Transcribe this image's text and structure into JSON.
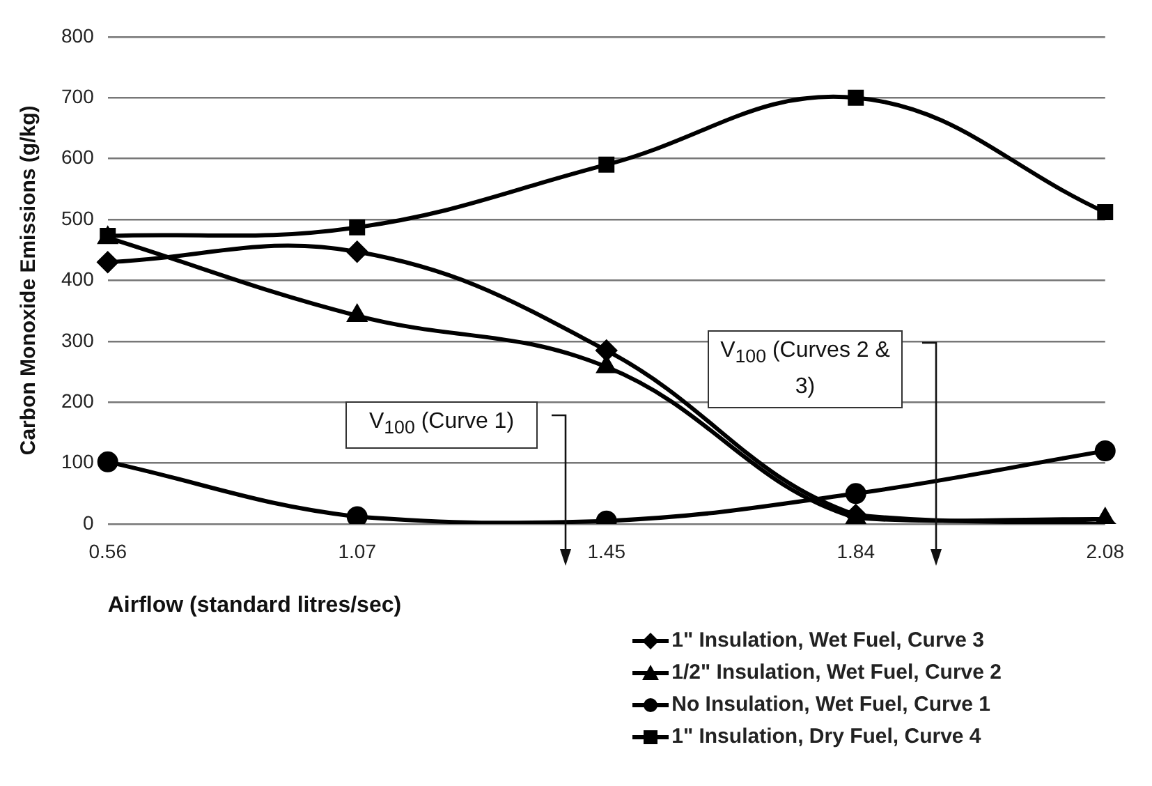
{
  "chart_data": {
    "type": "line",
    "xlabel": "Airflow (standard litres/sec)",
    "ylabel": "Carbon Monoxide Emissions (g/kg)",
    "categories": [
      "0.56",
      "1.07",
      "1.45",
      "1.84",
      "2.08"
    ],
    "series": [
      {
        "name": "1\" Insulation, Wet Fuel, Curve 3",
        "color": "#000000",
        "marker": "diamond",
        "values": [
          430,
          447,
          285,
          15,
          0
        ]
      },
      {
        "name": "1/2\" Insulation, Wet Fuel, Curve 2",
        "color": "#000000",
        "marker": "triangle",
        "values": [
          470,
          342,
          258,
          10,
          8
        ]
      },
      {
        "name": "No Insulation, Wet Fuel, Curve 1",
        "color": "#000000",
        "marker": "circle",
        "values": [
          102,
          12,
          5,
          50,
          120
        ]
      },
      {
        "name": "1\" Insulation, Dry Fuel, Curve 4",
        "color": "#000000",
        "marker": "square",
        "values": [
          473,
          487,
          590,
          700,
          512
        ]
      }
    ],
    "ylim": [
      0,
      800
    ],
    "yticks": [
      0,
      100,
      200,
      300,
      400,
      500,
      600,
      700,
      800
    ],
    "grid": "y",
    "legend": "bottom right",
    "line_style": "solid",
    "annotations": [
      "V$_{100}$ (Curve 1)",
      "V$_{100}$ (Curves 2 & 3)"
    ]
  }
}
